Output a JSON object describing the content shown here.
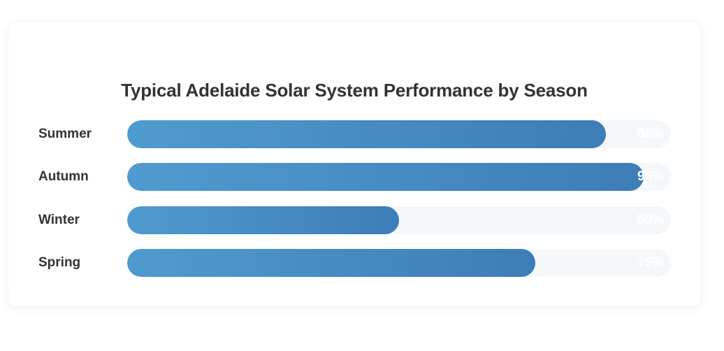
{
  "chart_data": {
    "type": "bar",
    "orientation": "horizontal",
    "title": "Typical Adelaide Solar System Performance by Season",
    "categories": [
      "Summer",
      "Autumn",
      "Winter",
      "Spring"
    ],
    "values": [
      88,
      95,
      50,
      75
    ],
    "value_labels": [
      "88%",
      "95%",
      "50%",
      "75%"
    ],
    "xlim": [
      0,
      100
    ],
    "unit": "%",
    "colors": {
      "bar_start": "#4f9bd0",
      "bar_end": "#3d7db8",
      "track": "#f5f8fa",
      "label_text": "#333333",
      "value_text": "#ffffff"
    }
  }
}
